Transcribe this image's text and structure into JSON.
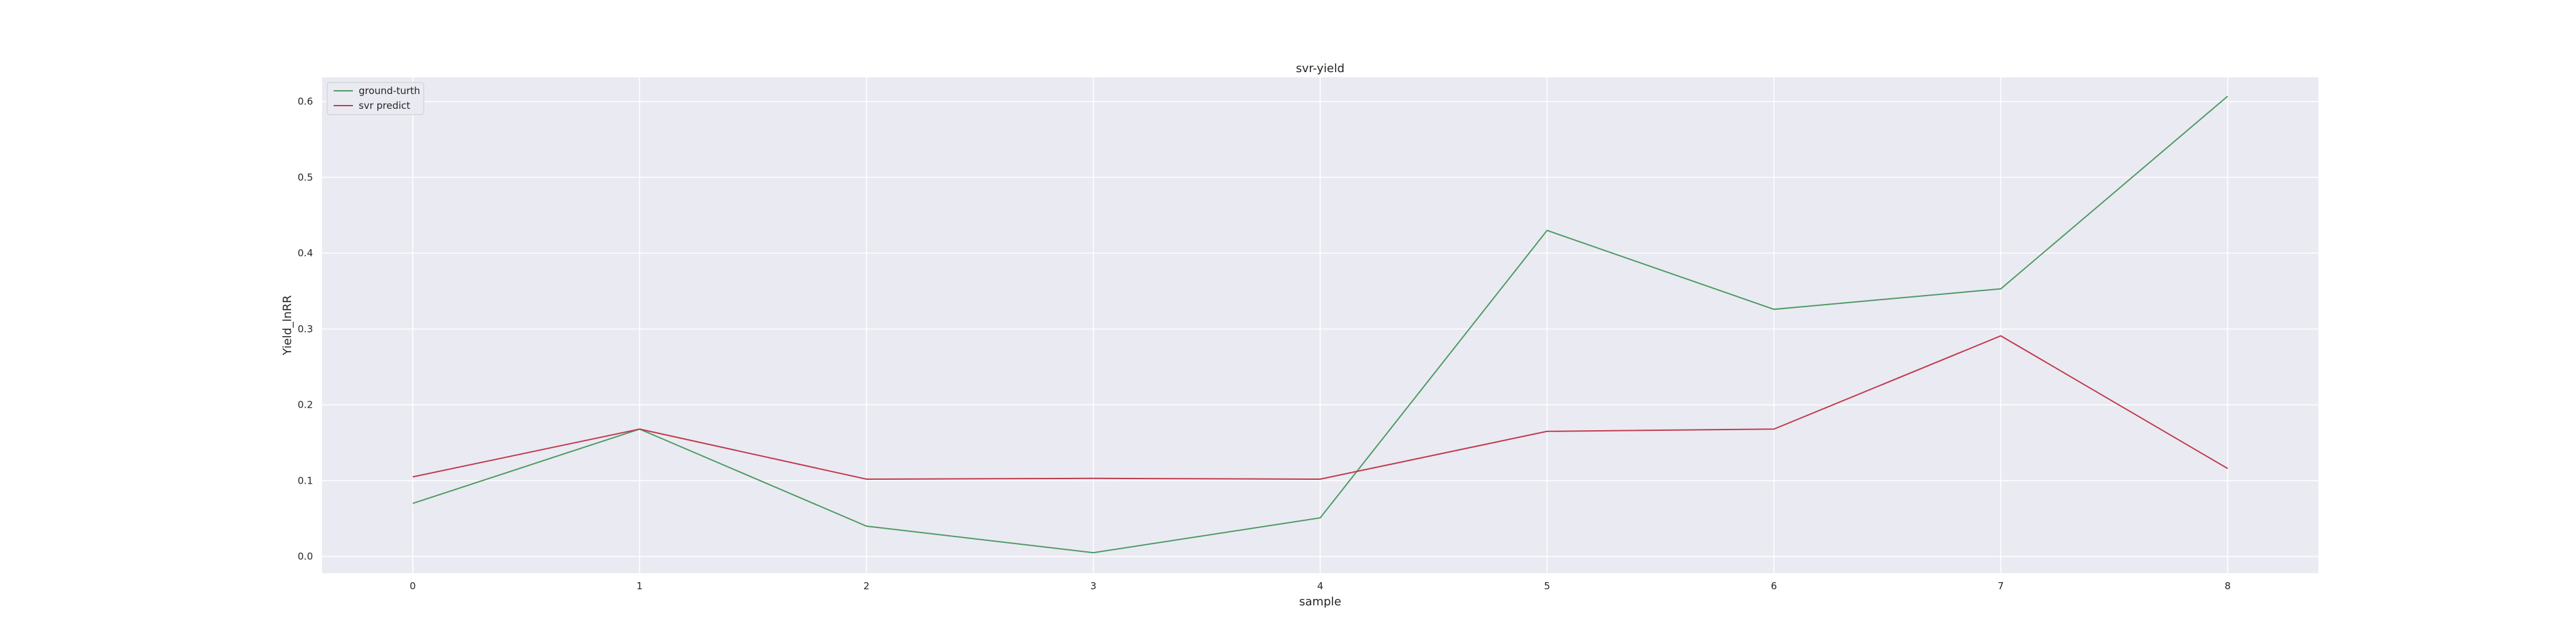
{
  "chart_data": {
    "type": "line",
    "title": "svr-yield",
    "xlabel": "sample",
    "ylabel": "Yield_lnRR",
    "x": [
      0,
      1,
      2,
      3,
      4,
      5,
      6,
      7,
      8
    ],
    "xlim": [
      -0.4,
      8.4
    ],
    "ylim": [
      -0.022,
      0.632
    ],
    "xticks": [
      0,
      1,
      2,
      3,
      4,
      5,
      6,
      7,
      8
    ],
    "yticks": [
      0.0,
      0.1,
      0.2,
      0.3,
      0.4,
      0.5,
      0.6
    ],
    "grid": true,
    "legend_position": "top-left",
    "series": [
      {
        "name": "ground-turth",
        "color": "#4c9a63",
        "values": [
          0.07,
          0.168,
          0.04,
          0.005,
          0.051,
          0.43,
          0.326,
          0.353,
          0.607
        ]
      },
      {
        "name": "svr predict",
        "color": "#c0394b",
        "values": [
          0.105,
          0.168,
          0.102,
          0.103,
          0.102,
          0.165,
          0.168,
          0.291,
          0.116
        ]
      }
    ]
  },
  "colors": {
    "plot_background": "#eaeaf2",
    "grid": "#ffffff",
    "text": "#262626"
  }
}
